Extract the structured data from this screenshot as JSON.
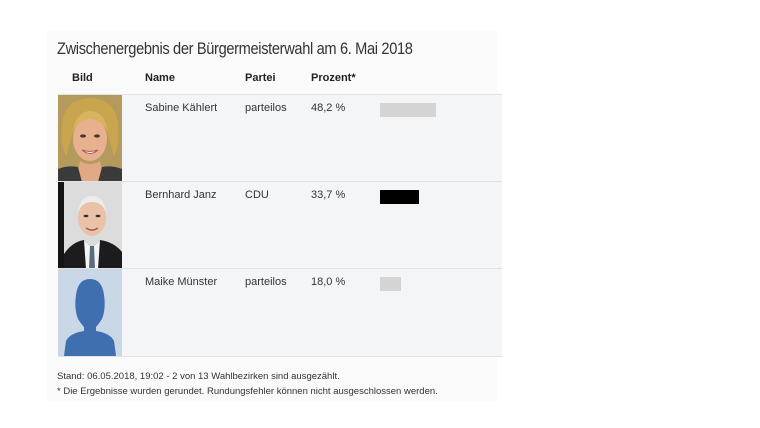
{
  "title": "Zwischenergebnis der Bürgermeisterwahl am 6. Mai 2018",
  "headers": {
    "bild": "Bild",
    "name": "Name",
    "partei": "Partei",
    "prozent": "Prozent*"
  },
  "candidates": [
    {
      "name": "Sabine Kählert",
      "party": "parteilos",
      "percent_label": "48,2 %",
      "percent": 48.2,
      "bar_color": "#d4d4d4",
      "photo": "woman-portrait"
    },
    {
      "name": "Bernhard Janz",
      "party": "CDU",
      "percent_label": "33,7 %",
      "percent": 33.7,
      "bar_color": "#000000",
      "photo": "man-portrait"
    },
    {
      "name": "Maike Münster",
      "party": "parteilos",
      "percent_label": "18,0 %",
      "percent": 18.0,
      "bar_color": "#d4d4d4",
      "photo": "silhouette-placeholder"
    }
  ],
  "footer": {
    "stand": "Stand: 06.05.2018, 19:02 - 2 von 13 Wahlbezirken sind ausgezählt.",
    "note": "* Die Ergebnisse wurden gerundet. Rundungsfehler können nicht ausgeschlossen werden."
  },
  "colors": {
    "row_background": "#f4f5f7",
    "silhouette_blue": "#3f6fae",
    "silhouette_bg": "#c9d7e6"
  }
}
